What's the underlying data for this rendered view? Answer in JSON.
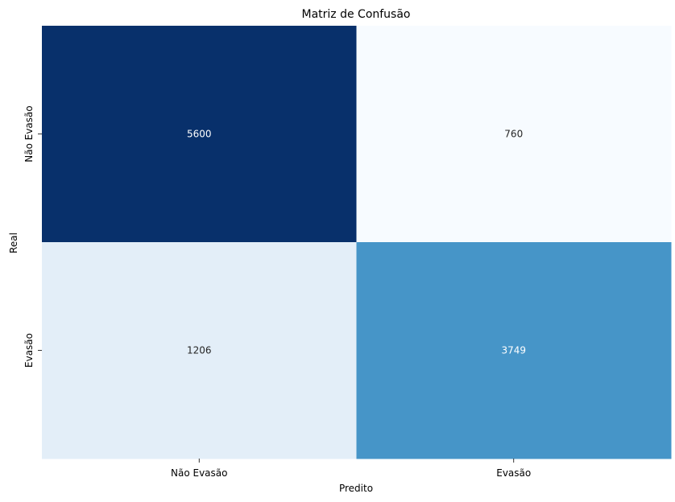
{
  "chart_data": {
    "type": "heatmap",
    "title": "Matriz de Confusão",
    "xlabel": "Predito",
    "ylabel": "Real",
    "x_categories": [
      "Não Evasão",
      "Evasão"
    ],
    "y_categories": [
      "Não Evasão",
      "Evasão"
    ],
    "values": [
      [
        5600,
        760
      ],
      [
        1206,
        3749
      ]
    ],
    "colormap": "Blues",
    "colors": [
      [
        "#08306b",
        "#f7fbff"
      ],
      [
        "#e3eef8",
        "#4695c8"
      ]
    ],
    "annotation_colors": [
      [
        "#ffffff",
        "#262626"
      ],
      [
        "#262626",
        "#ffffff"
      ]
    ],
    "colorbar": false,
    "grid": false
  }
}
